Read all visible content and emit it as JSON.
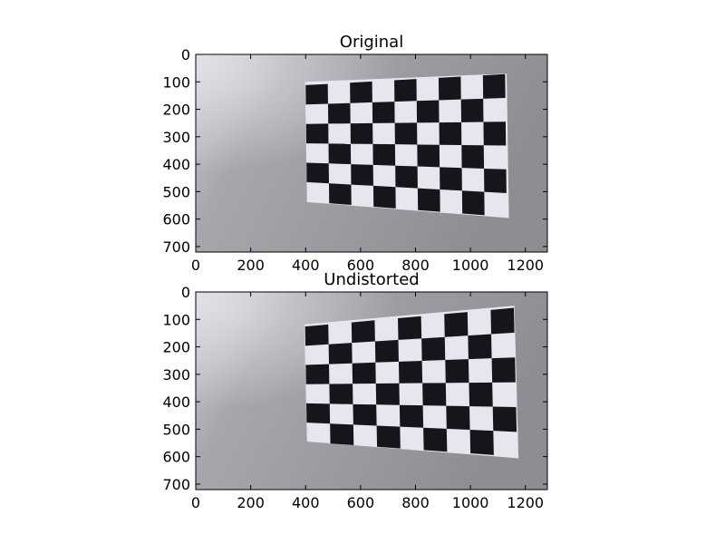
{
  "figure": {
    "background": "#ffffff",
    "axes_color": "#000000",
    "panels": [
      {
        "title": "Original",
        "distortion": "original",
        "image_description": "grey wall with tilted black-and-white checkerboard calibration pattern",
        "xlim": [
          0,
          1280
        ],
        "ylim": [
          0,
          720
        ],
        "xticks": [
          0,
          200,
          400,
          600,
          800,
          1000,
          1200
        ],
        "yticks": [
          0,
          100,
          200,
          300,
          400,
          500,
          600,
          700
        ],
        "xtick_labels": [
          "0",
          "200",
          "400",
          "600",
          "800",
          "1000",
          "1200"
        ],
        "ytick_labels": [
          "0",
          "100",
          "200",
          "300",
          "400",
          "500",
          "600",
          "700"
        ],
        "colors": {
          "wall_light": "#c7c8cd",
          "wall_mid": "#9a9ba1",
          "wall_dark": "#8b8c90",
          "board": "#e6e6ee",
          "square": "#15151c"
        }
      },
      {
        "title": "Undistorted",
        "distortion": "undistorted",
        "image_description": "same scene after lens distortion correction",
        "xlim": [
          0,
          1280
        ],
        "ylim": [
          0,
          720
        ],
        "xticks": [
          0,
          200,
          400,
          600,
          800,
          1000,
          1200
        ],
        "yticks": [
          0,
          100,
          200,
          300,
          400,
          500,
          600,
          700
        ],
        "xtick_labels": [
          "0",
          "200",
          "400",
          "600",
          "800",
          "1000",
          "1200"
        ],
        "ytick_labels": [
          "0",
          "100",
          "200",
          "300",
          "400",
          "500",
          "600",
          "700"
        ],
        "colors": {
          "wall_light": "#c7c8cd",
          "wall_mid": "#9a9ba1",
          "wall_dark": "#8b8c90",
          "board": "#e6e6ee",
          "square": "#15151c"
        }
      }
    ]
  }
}
